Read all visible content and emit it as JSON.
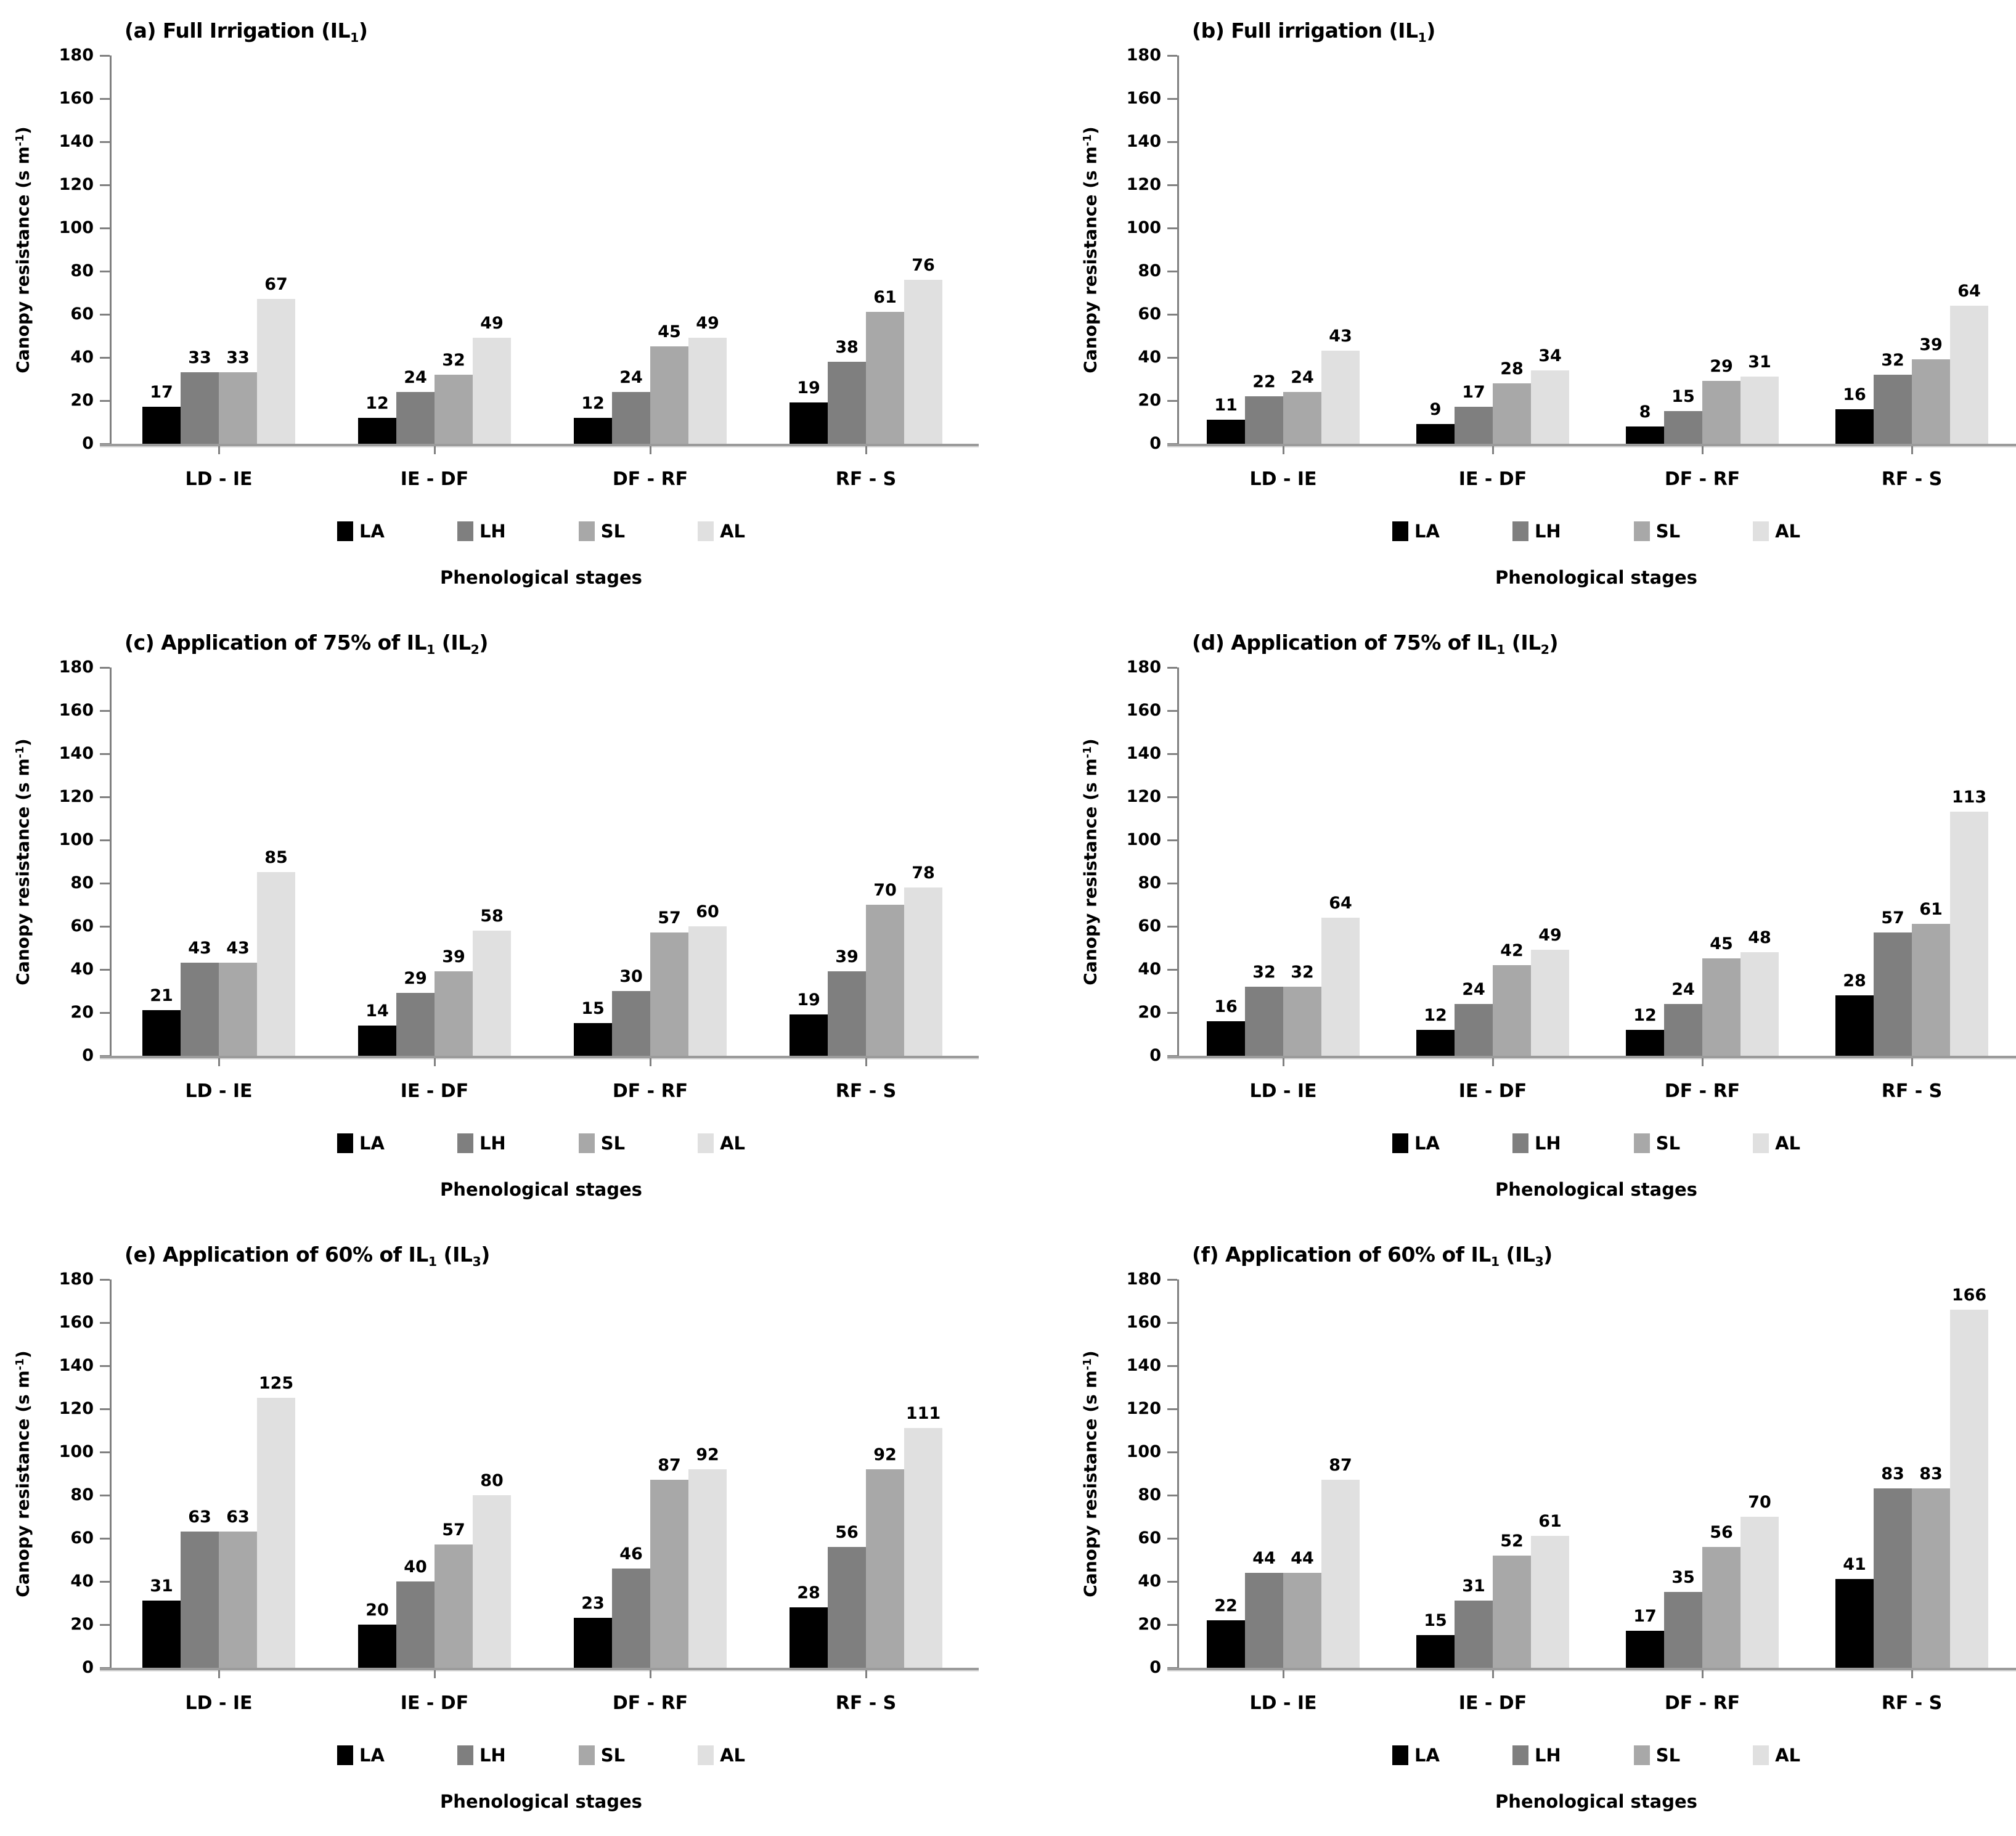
{
  "figure": {
    "xlabel": "Phenological stages",
    "ylabel_text": "Canopy resistance (s m-1)",
    "ylabel_segments": [
      {
        "t": "Canopy resistance (s m"
      },
      {
        "t": "-1",
        "s": "sup"
      },
      {
        "t": ")"
      }
    ],
    "categories": [
      "LD - IE",
      "IE - DF",
      "DF - RF",
      "RF - S"
    ],
    "series_names": [
      "LA",
      "LH",
      "SL",
      "AL"
    ],
    "colors": {
      "LA": "#000000",
      "LH": "#7f7f7f",
      "SL": "#a8a8a8",
      "AL": "#e0e0e0"
    },
    "axis_color": "#808080",
    "baseline_color": "#9b9b9b",
    "y_axis": {
      "min": 0,
      "max": 180,
      "step": 20
    }
  },
  "chart_data": [
    {
      "type": "bar",
      "panel_label": "a",
      "title_text": "(a) Full Irrigation (IL1)",
      "title_segments": [
        {
          "t": "(a) Full Irrigation (IL"
        },
        {
          "t": "1",
          "s": "sub"
        },
        {
          "t": ")"
        }
      ],
      "xlabel": "Phenological stages",
      "ylabel": "Canopy resistance (s m-1)",
      "ylim": [
        0,
        180
      ],
      "ytick_step": 20,
      "grid": false,
      "legend_position": "bottom",
      "categories": [
        "LD - IE",
        "IE - DF",
        "DF - RF",
        "RF - S"
      ],
      "series": [
        {
          "name": "LA",
          "values": [
            17,
            12,
            12,
            19
          ]
        },
        {
          "name": "LH",
          "values": [
            33,
            24,
            24,
            38
          ]
        },
        {
          "name": "SL",
          "values": [
            33,
            32,
            45,
            61
          ]
        },
        {
          "name": "AL",
          "values": [
            67,
            49,
            49,
            76
          ]
        }
      ]
    },
    {
      "type": "bar",
      "panel_label": "b",
      "title_text": "(b) Full irrigation (IL1)",
      "title_segments": [
        {
          "t": "(b) Full irrigation (IL"
        },
        {
          "t": "1",
          "s": "sub"
        },
        {
          "t": ")"
        }
      ],
      "xlabel": "Phenological stages",
      "ylabel": "Canopy resistance (s m-1)",
      "ylim": [
        0,
        180
      ],
      "ytick_step": 20,
      "grid": false,
      "legend_position": "bottom",
      "categories": [
        "LD - IE",
        "IE - DF",
        "DF - RF",
        "RF - S"
      ],
      "series": [
        {
          "name": "LA",
          "values": [
            11,
            9,
            8,
            16
          ]
        },
        {
          "name": "LH",
          "values": [
            22,
            17,
            15,
            32
          ]
        },
        {
          "name": "SL",
          "values": [
            24,
            28,
            29,
            39
          ]
        },
        {
          "name": "AL",
          "values": [
            43,
            34,
            31,
            64
          ]
        }
      ]
    },
    {
      "type": "bar",
      "panel_label": "c",
      "title_text": "(c) Application of 75% of IL1 (IL2)",
      "title_segments": [
        {
          "t": "(c) Application of 75% of IL"
        },
        {
          "t": "1",
          "s": "sub"
        },
        {
          "t": " (IL"
        },
        {
          "t": "2",
          "s": "sub"
        },
        {
          "t": ")"
        }
      ],
      "xlabel": "Phenological stages",
      "ylabel": "Canopy resistance (s m-1)",
      "ylim": [
        0,
        180
      ],
      "ytick_step": 20,
      "grid": false,
      "legend_position": "bottom",
      "categories": [
        "LD - IE",
        "IE - DF",
        "DF - RF",
        "RF - S"
      ],
      "series": [
        {
          "name": "LA",
          "values": [
            21,
            14,
            15,
            19
          ]
        },
        {
          "name": "LH",
          "values": [
            43,
            29,
            30,
            39
          ]
        },
        {
          "name": "SL",
          "values": [
            43,
            39,
            57,
            70
          ]
        },
        {
          "name": "AL",
          "values": [
            85,
            58,
            60,
            78
          ]
        }
      ]
    },
    {
      "type": "bar",
      "panel_label": "d",
      "title_text": "(d) Application of 75% of IL1 (IL2)",
      "title_segments": [
        {
          "t": "(d) Application of 75% of IL"
        },
        {
          "t": "1",
          "s": "sub"
        },
        {
          "t": " (IL"
        },
        {
          "t": "2",
          "s": "sub"
        },
        {
          "t": ")"
        }
      ],
      "xlabel": "Phenological stages",
      "ylabel": "Canopy resistance (s m-1)",
      "ylim": [
        0,
        180
      ],
      "ytick_step": 20,
      "grid": false,
      "legend_position": "bottom",
      "categories": [
        "LD - IE",
        "IE - DF",
        "DF - RF",
        "RF - S"
      ],
      "series": [
        {
          "name": "LA",
          "values": [
            16,
            12,
            12,
            28
          ]
        },
        {
          "name": "LH",
          "values": [
            32,
            24,
            24,
            57
          ]
        },
        {
          "name": "SL",
          "values": [
            32,
            42,
            45,
            61
          ]
        },
        {
          "name": "AL",
          "values": [
            64,
            49,
            48,
            113
          ]
        }
      ]
    },
    {
      "type": "bar",
      "panel_label": "e",
      "title_text": "(e) Application of 60% of IL1 (IL3)",
      "title_segments": [
        {
          "t": "(e) Application of 60% of IL"
        },
        {
          "t": "1",
          "s": "sub"
        },
        {
          "t": " (IL"
        },
        {
          "t": "3",
          "s": "sub"
        },
        {
          "t": ")"
        }
      ],
      "xlabel": "Phenological stages",
      "ylabel": "Canopy resistance (s m-1)",
      "ylim": [
        0,
        180
      ],
      "ytick_step": 20,
      "grid": false,
      "legend_position": "bottom",
      "categories": [
        "LD - IE",
        "IE - DF",
        "DF - RF",
        "RF - S"
      ],
      "series": [
        {
          "name": "LA",
          "values": [
            31,
            20,
            23,
            28
          ]
        },
        {
          "name": "LH",
          "values": [
            63,
            40,
            46,
            56
          ]
        },
        {
          "name": "SL",
          "values": [
            63,
            57,
            87,
            92
          ]
        },
        {
          "name": "AL",
          "values": [
            125,
            80,
            92,
            111
          ]
        }
      ]
    },
    {
      "type": "bar",
      "panel_label": "f",
      "title_text": "(f) Application of 60% of IL1 (IL3)",
      "title_segments": [
        {
          "t": "(f) Application of 60% of IL"
        },
        {
          "t": "1",
          "s": "sub"
        },
        {
          "t": " (IL"
        },
        {
          "t": "3",
          "s": "sub"
        },
        {
          "t": ")"
        }
      ],
      "xlabel": "Phenological stages",
      "ylabel": "Canopy resistance (s m-1)",
      "ylim": [
        0,
        180
      ],
      "ytick_step": 20,
      "grid": false,
      "legend_position": "bottom",
      "categories": [
        "LD - IE",
        "IE - DF",
        "DF - RF",
        "RF - S"
      ],
      "series": [
        {
          "name": "LA",
          "values": [
            22,
            15,
            17,
            41
          ]
        },
        {
          "name": "LH",
          "values": [
            44,
            31,
            35,
            83
          ]
        },
        {
          "name": "SL",
          "values": [
            44,
            52,
            56,
            83
          ]
        },
        {
          "name": "AL",
          "values": [
            87,
            61,
            70,
            166
          ]
        }
      ]
    }
  ]
}
